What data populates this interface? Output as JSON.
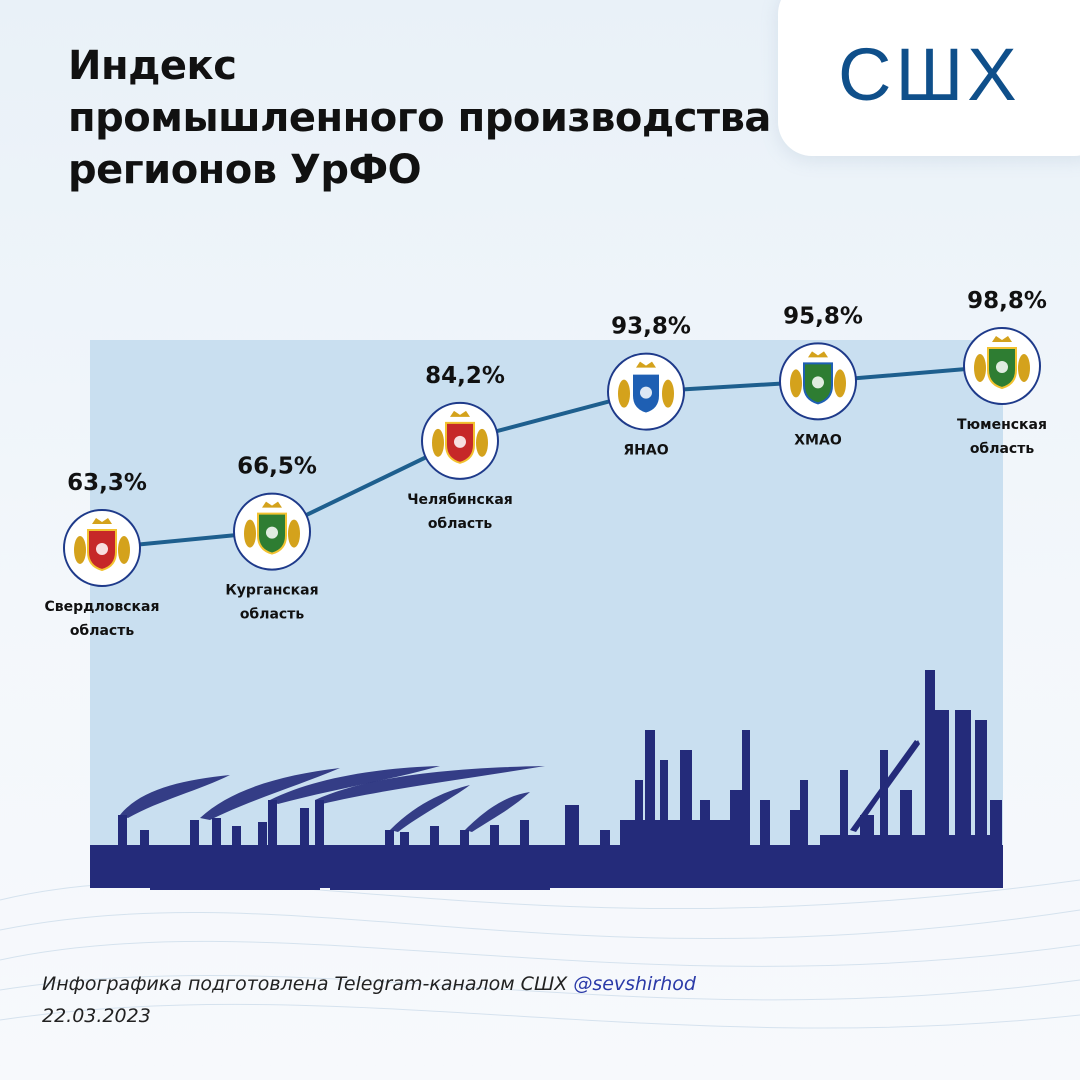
{
  "header": {
    "title_lines": [
      "Индекс",
      "промышленного производства",
      "регионов УрФО"
    ]
  },
  "logo": {
    "text": "СШХ",
    "color": "#0f4f8a"
  },
  "chart_data": {
    "type": "line",
    "title": "Индекс промышленного производства регионов УрФО",
    "categories": [
      [
        "Свердловская",
        "область"
      ],
      [
        "Курганская",
        "область"
      ],
      [
        "Челябинская",
        "область"
      ],
      [
        "ЯНАО"
      ],
      [
        "ХМАО"
      ],
      [
        "Тюменская",
        "область"
      ]
    ],
    "values": [
      63.3,
      66.5,
      84.2,
      93.8,
      95.8,
      98.8
    ],
    "value_labels": [
      "63,3%",
      "66,5%",
      "84,2%",
      "93,8%",
      "95,8%",
      "98,8%"
    ],
    "unit": "%",
    "line_color": "#1e5f8e",
    "area_color": "#c9dff0",
    "silhouette_color": "#242b7a",
    "marker_icons": [
      "sverdlovsk-coat-of-arms-icon",
      "kurgan-coat-of-arms-icon",
      "chelyabinsk-coat-of-arms-icon",
      "yamal-coat-of-arms-icon",
      "khmao-coat-of-arms-icon",
      "tyumen-coat-of-arms-icon"
    ],
    "grid": false,
    "legend": "none"
  },
  "footer": {
    "text": "Инфографика подготовлена Telegram-каналом СШХ ",
    "handle": "@sevshirhod",
    "date": "22.03.2023"
  }
}
